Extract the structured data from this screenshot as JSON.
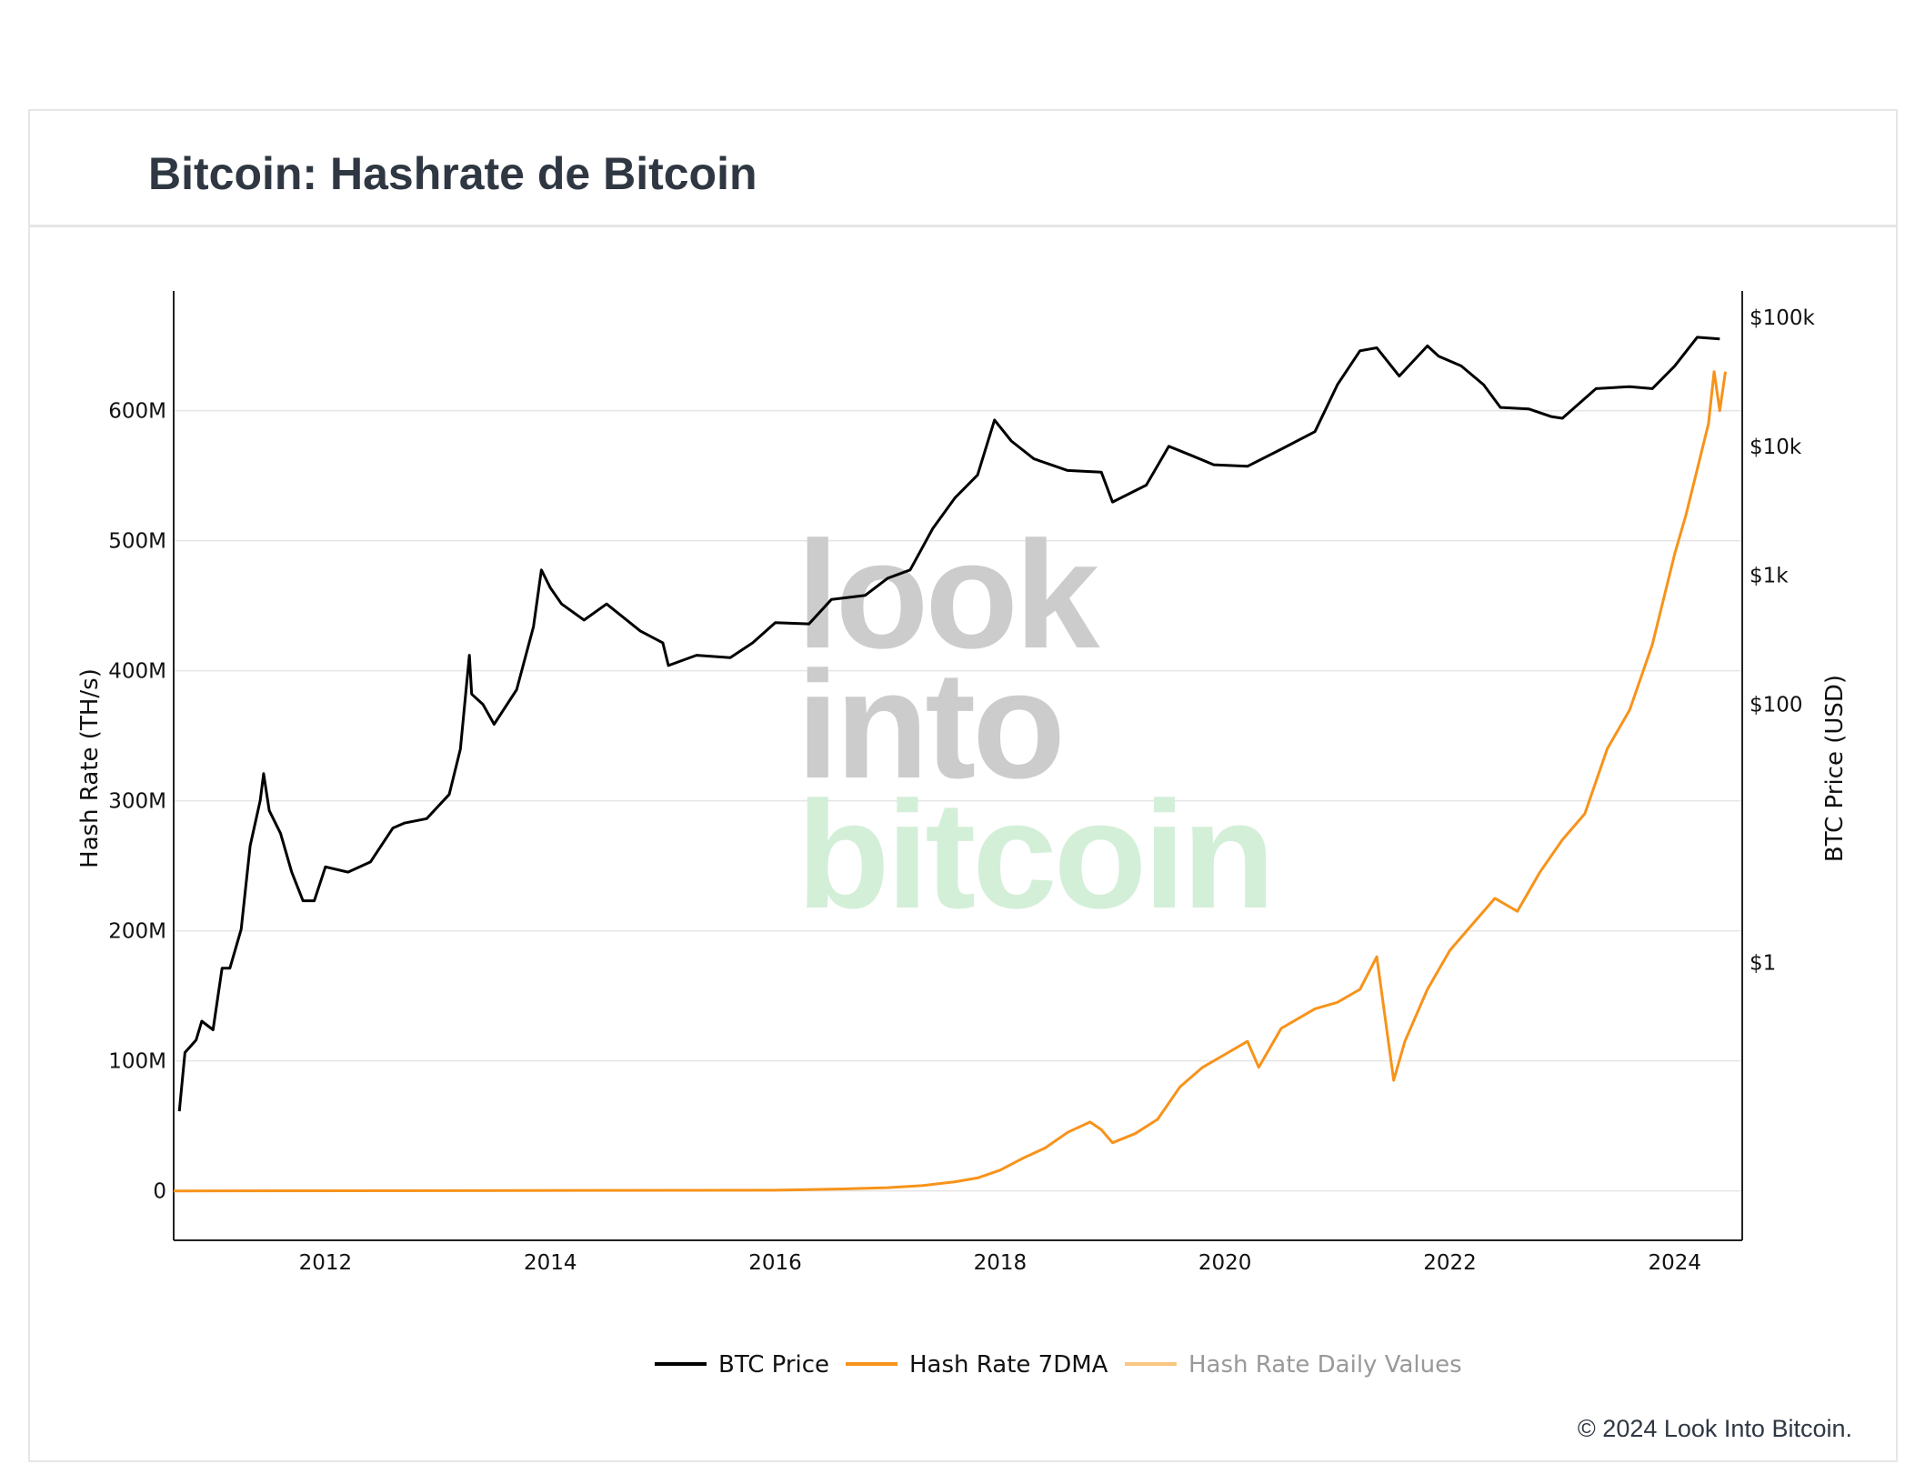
{
  "title": "Bitcoin: Hashrate de Bitcoin",
  "copyright": "© 2024 Look Into Bitcoin.",
  "watermark": {
    "line1": "look",
    "line2": "into",
    "line3": "bitcoin"
  },
  "colors": {
    "price": "#000000",
    "hashrate": "#f7931a",
    "daily": "#f9c680",
    "grid": "#e5e5e5",
    "watermark_gray": "#cccccc",
    "watermark_green": "#d4efd8"
  },
  "chart_data": {
    "type": "line",
    "title": "Bitcoin: Hashrate de Bitcoin",
    "xlabel": "",
    "x_ticks": [
      "2012",
      "2014",
      "2016",
      "2018",
      "2020",
      "2022",
      "2024"
    ],
    "y_left": {
      "label": "Hash Rate (TH/s)",
      "ticks": [
        "0",
        "100M",
        "200M",
        "300M",
        "400M",
        "500M",
        "600M"
      ],
      "tick_values": [
        0,
        100,
        200,
        300,
        400,
        500,
        600
      ],
      "range_millions": [
        -38,
        692
      ]
    },
    "y_right": {
      "label": "BTC Price (USD)",
      "scale": "log",
      "ticks": [
        "$1",
        "$100",
        "$1k",
        "$10k",
        "$100k"
      ],
      "tick_values": [
        1,
        100,
        1000,
        10000,
        100000
      ],
      "range": [
        0.007,
        160000
      ]
    },
    "x_range": [
      2010.65,
      2024.6
    ],
    "grid": true,
    "legend_position": "bottom-center",
    "legend": [
      "BTC Price",
      "Hash Rate 7DMA",
      "Hash Rate Daily Values"
    ],
    "series": [
      {
        "name": "BTC Price",
        "axis": "right",
        "x": [
          2010.7,
          2010.75,
          2010.85,
          2010.9,
          2011.0,
          2011.08,
          2011.15,
          2011.25,
          2011.33,
          2011.42,
          2011.45,
          2011.5,
          2011.6,
          2011.7,
          2011.8,
          2011.9,
          2012.0,
          2012.2,
          2012.4,
          2012.6,
          2012.7,
          2012.9,
          2013.1,
          2013.2,
          2013.28,
          2013.3,
          2013.4,
          2013.5,
          2013.7,
          2013.85,
          2013.92,
          2014.0,
          2014.1,
          2014.3,
          2014.5,
          2014.8,
          2015.0,
          2015.05,
          2015.3,
          2015.6,
          2015.8,
          2016.0,
          2016.3,
          2016.5,
          2016.8,
          2017.0,
          2017.2,
          2017.4,
          2017.6,
          2017.8,
          2017.95,
          2018.1,
          2018.3,
          2018.6,
          2018.9,
          2019.0,
          2019.3,
          2019.5,
          2019.7,
          2019.9,
          2020.2,
          2020.5,
          2020.8,
          2021.0,
          2021.2,
          2021.35,
          2021.55,
          2021.8,
          2021.9,
          2022.1,
          2022.3,
          2022.45,
          2022.7,
          2022.9,
          2023.0,
          2023.3,
          2023.6,
          2023.8,
          2024.0,
          2024.2,
          2024.4
        ],
        "values": [
          0.07,
          0.2,
          0.25,
          0.35,
          0.3,
          0.9,
          0.9,
          1.8,
          8,
          18,
          29,
          15,
          10,
          5,
          3,
          3,
          5.5,
          5,
          6,
          11,
          12,
          13,
          20,
          45,
          240,
          120,
          100,
          70,
          130,
          400,
          1100,
          800,
          600,
          450,
          600,
          370,
          300,
          200,
          240,
          230,
          300,
          430,
          420,
          650,
          700,
          950,
          1100,
          2300,
          4000,
          6000,
          16000,
          11000,
          8000,
          6500,
          6300,
          3700,
          5000,
          10000,
          8500,
          7200,
          7000,
          9500,
          13000,
          30000,
          55000,
          58000,
          35000,
          60000,
          50000,
          42000,
          30000,
          20000,
          19500,
          17000,
          16500,
          28000,
          29000,
          28000,
          42000,
          70000,
          68000
        ]
      },
      {
        "name": "Hash Rate 7DMA",
        "axis": "left",
        "x": [
          2010.65,
          2016.0,
          2016.6,
          2017.0,
          2017.3,
          2017.6,
          2017.8,
          2018.0,
          2018.2,
          2018.4,
          2018.6,
          2018.8,
          2018.9,
          2019.0,
          2019.2,
          2019.4,
          2019.6,
          2019.8,
          2020.0,
          2020.2,
          2020.3,
          2020.5,
          2020.8,
          2021.0,
          2021.2,
          2021.35,
          2021.5,
          2021.6,
          2021.8,
          2022.0,
          2022.2,
          2022.4,
          2022.6,
          2022.8,
          2023.0,
          2023.2,
          2023.4,
          2023.6,
          2023.8,
          2024.0,
          2024.1,
          2024.3,
          2024.35,
          2024.4,
          2024.45
        ],
        "values": [
          0,
          0.5,
          1.5,
          2.5,
          4,
          7,
          10,
          16,
          25,
          33,
          45,
          53,
          47,
          37,
          44,
          55,
          80,
          95,
          105,
          115,
          95,
          125,
          140,
          145,
          155,
          180,
          85,
          115,
          155,
          185,
          205,
          225,
          215,
          245,
          270,
          290,
          340,
          370,
          420,
          490,
          520,
          590,
          630,
          600,
          630
        ]
      },
      {
        "name": "Hash Rate Daily Values",
        "axis": "left",
        "x": [],
        "values": []
      }
    ]
  }
}
